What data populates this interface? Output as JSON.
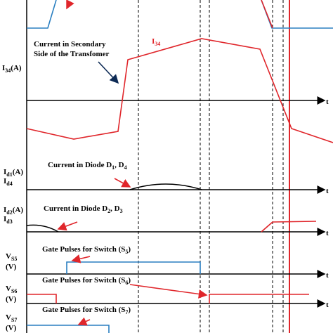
{
  "time_axis_label": "t",
  "panels": [
    {
      "label": {
        "main": "I",
        "sub": "34",
        "unit": "(A)"
      },
      "annotation": [
        "Current in Secondary",
        "Side of the Transfomer"
      ],
      "curve_label": {
        "main": "I",
        "sub": "34"
      }
    },
    {
      "label": {
        "main": "I",
        "sub": "d1",
        "unit": "(A)",
        "main2": "I",
        "sub2": "d4"
      },
      "annotation": {
        "text": "Current in Diode D",
        "sub": "1",
        "rest": ", D",
        "sub2": "4"
      }
    },
    {
      "label": {
        "main": "I",
        "sub": "d2",
        "unit": "(A)",
        "main2": "I",
        "sub2": "d3"
      },
      "annotation": {
        "text": "Current in Diode D",
        "sub": "2",
        "rest": ", D",
        "sub2": "3"
      }
    },
    {
      "label": {
        "main": "V",
        "sub": "S5",
        "unit": "(V)"
      },
      "annotation": {
        "text": "Gate Pulses for Switch (S",
        "sub": "5",
        "rest": ")"
      }
    },
    {
      "label": {
        "main": "V",
        "sub": "S6",
        "unit": "(V)"
      },
      "annotation": {
        "text": "Gate Pulses for Switch (S",
        "sub": "6",
        "rest": ")"
      }
    },
    {
      "label": {
        "main": "V",
        "sub": "S7",
        "unit": "(V)"
      },
      "annotation": {
        "text": "Gate Pulses for Switch (S",
        "sub": "7",
        "rest": ")"
      }
    }
  ]
}
